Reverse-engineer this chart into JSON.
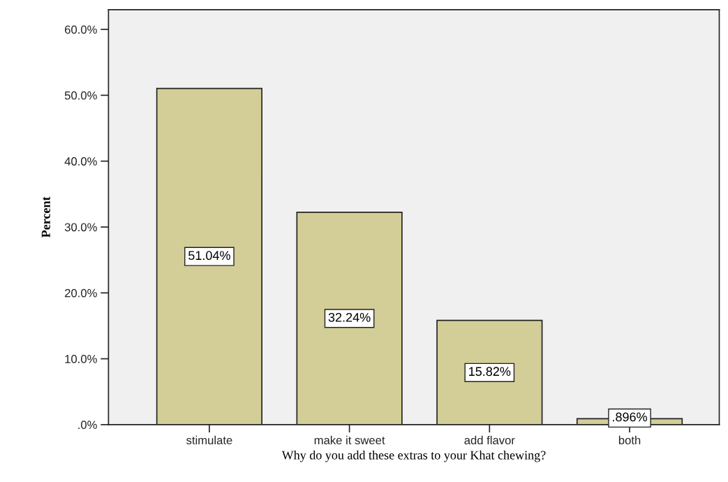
{
  "chart_data": {
    "type": "bar",
    "categories": [
      "stimulate",
      "make it sweet",
      "add flavor",
      "both"
    ],
    "values": [
      51.04,
      32.24,
      15.82,
      0.896
    ],
    "value_labels": [
      "51.04%",
      "32.24%",
      "15.82%",
      ".896%"
    ],
    "color": "#d3ce97",
    "xlabel": "Why do you add these extras to your Khat chewing?",
    "ylabel": "Percent",
    "ylim": [
      0,
      63
    ],
    "yticks": [
      {
        "value": 0,
        "label": ".0%"
      },
      {
        "value": 10,
        "label": "10.0%"
      },
      {
        "value": 20,
        "label": "20.0%"
      },
      {
        "value": 30,
        "label": "30.0%"
      },
      {
        "value": 40,
        "label": "40.0%"
      },
      {
        "value": 50,
        "label": "50.0%"
      },
      {
        "value": 60,
        "label": "60.0%"
      }
    ],
    "grid": false
  }
}
